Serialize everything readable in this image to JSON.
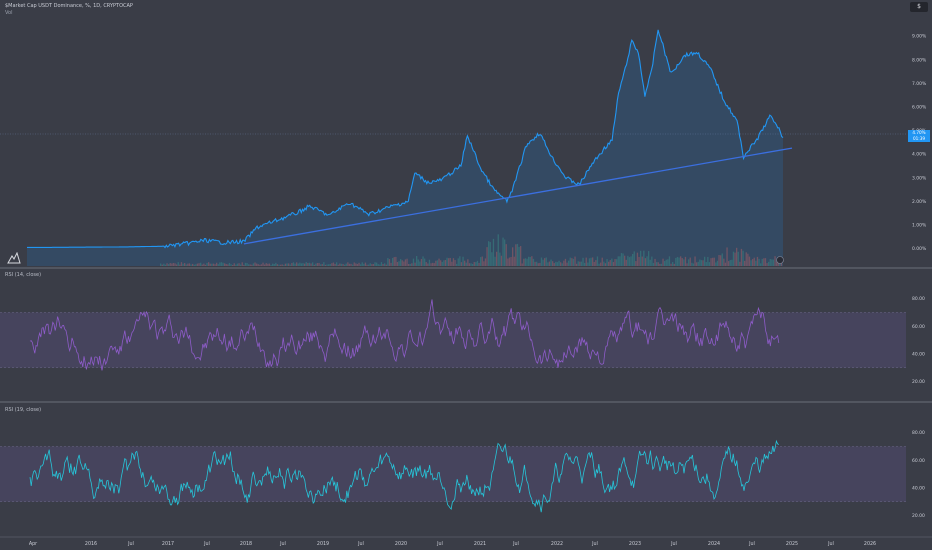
{
  "header": {
    "title": "$Market Cap USDT Dominance, %, 1D, CRYPTOCAP",
    "subtitle": "Vol",
    "currency_button": "$"
  },
  "price_tags": [
    "4.70%",
    "01:39"
  ],
  "colors": {
    "background": "#3a3d47",
    "price_line": "#2196f3",
    "trendline": "#3b6fe0",
    "rsi14_line": "#8e5cc9",
    "rsi19_line": "#26c6da",
    "rsi_band": "#4a4663",
    "volume_up": "#3f8c74",
    "volume_down": "#c8554a"
  },
  "chart_data": [
    {
      "type": "line",
      "title": "$Market Cap USDT Dominance, %, 1D, CRYPTOCAP",
      "ylabel": "",
      "y_ticks": [
        "0.00%",
        "1.00%",
        "2.00%",
        "3.00%",
        "4.00%",
        "5.00%",
        "6.00%",
        "7.00%",
        "8.00%",
        "9.00%"
      ],
      "ylim": [
        -0.4,
        9.6
      ],
      "series": [
        {
          "points": [
            [
              "2015-04",
              0.05
            ],
            [
              "2015-07",
              0.05
            ],
            [
              "2016-01",
              0.06
            ],
            [
              "2016-07",
              0.07
            ],
            [
              "2017-01",
              0.1
            ],
            [
              "2017-04",
              0.2
            ],
            [
              "2017-07",
              0.35
            ],
            [
              "2017-10",
              0.25
            ],
            [
              "2018-01",
              0.3
            ],
            [
              "2018-03",
              0.9
            ],
            [
              "2018-06",
              1.2
            ],
            [
              "2018-09",
              1.5
            ],
            [
              "2018-11",
              1.8
            ],
            [
              "2019-02",
              1.4
            ],
            [
              "2019-05",
              1.95
            ],
            [
              "2019-08",
              1.45
            ],
            [
              "2019-11",
              1.75
            ],
            [
              "2020-02",
              2.0
            ],
            [
              "2020-03",
              3.2
            ],
            [
              "2020-05",
              2.8
            ],
            [
              "2020-07",
              2.9
            ],
            [
              "2020-08",
              3.1
            ],
            [
              "2020-10",
              3.5
            ],
            [
              "2020-11",
              4.8
            ],
            [
              "2021-01",
              3.4
            ],
            [
              "2021-03",
              2.5
            ],
            [
              "2021-05",
              2.0
            ],
            [
              "2021-06",
              2.6
            ],
            [
              "2021-08",
              4.4
            ],
            [
              "2021-10",
              4.9
            ],
            [
              "2021-12",
              3.8
            ],
            [
              "2022-02",
              3.0
            ],
            [
              "2022-04",
              2.7
            ],
            [
              "2022-06",
              3.6
            ],
            [
              "2022-08",
              4.3
            ],
            [
              "2022-09",
              4.6
            ],
            [
              "2022-10",
              6.6
            ],
            [
              "2022-11",
              7.6
            ],
            [
              "2022-12",
              8.8
            ],
            [
              "2023-01",
              8.3
            ],
            [
              "2023-02",
              6.5
            ],
            [
              "2023-03",
              7.5
            ],
            [
              "2023-04",
              9.3
            ],
            [
              "2023-06",
              7.4
            ],
            [
              "2023-08",
              8.2
            ],
            [
              "2023-10",
              8.3
            ],
            [
              "2023-12",
              7.6
            ],
            [
              "2024-02",
              6.3
            ],
            [
              "2024-04",
              5.4
            ],
            [
              "2024-05",
              3.9
            ],
            [
              "2024-07",
              4.6
            ],
            [
              "2024-09",
              5.6
            ],
            [
              "2024-10",
              5.3
            ],
            [
              "2024-11",
              4.7
            ]
          ]
        },
        {
          "points": [
            [
              "2018-01",
              0.2
            ],
            [
              "2025-06",
              4.3
            ]
          ]
        }
      ],
      "xlabel": ""
    },
    {
      "type": "line",
      "title": "RSI (14, close)",
      "y_ticks": [
        "20.00",
        "40.00",
        "60.00",
        "80.00"
      ],
      "ylim": [
        8,
        95
      ],
      "bands": [
        30,
        70
      ],
      "series": [
        {
          "values_range": [
            22,
            88
          ]
        }
      ]
    },
    {
      "type": "line",
      "title": "RSI (19, close)",
      "y_ticks": [
        "20.00",
        "40.00",
        "60.00",
        "80.00"
      ],
      "ylim": [
        8,
        95
      ],
      "bands": [
        30,
        70
      ],
      "series": [
        {
          "values_range": [
            22,
            88
          ]
        }
      ]
    }
  ],
  "x_axis_labels": [
    "Apr",
    "2016",
    "Jul",
    "2017",
    "Jul",
    "2018",
    "Jul",
    "2019",
    "Jul",
    "2020",
    "Jul",
    "2021",
    "Jul",
    "2022",
    "Jul",
    "2023",
    "Jul",
    "2024",
    "Jul",
    "2025",
    "Jul",
    "2026"
  ]
}
